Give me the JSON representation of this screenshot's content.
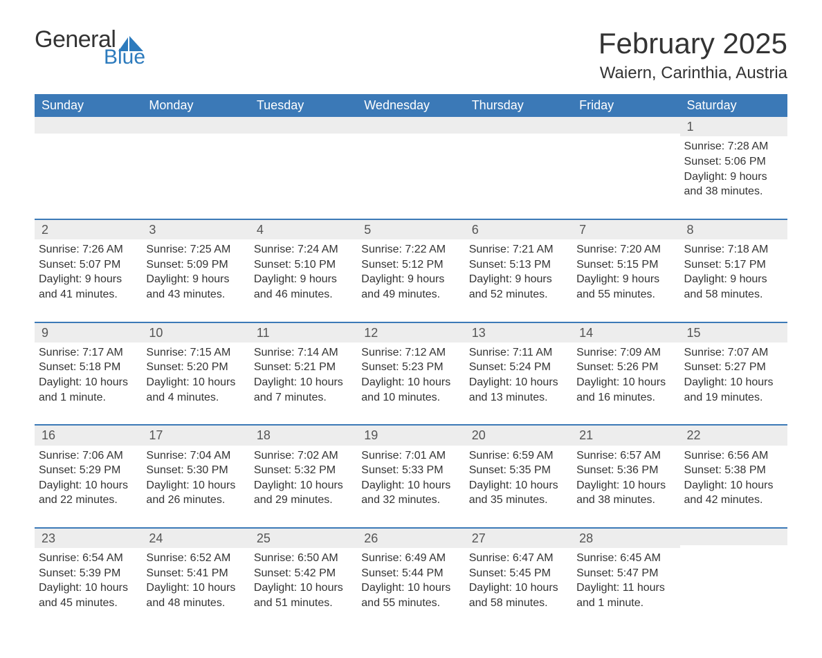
{
  "logo": {
    "general": "General",
    "blue": "Blue",
    "sail_color": "#2d7bbd"
  },
  "title": "February 2025",
  "location": "Waiern, Carinthia, Austria",
  "colors": {
    "header_bg": "#3b79b7",
    "header_text": "#ffffff",
    "daynum_bg": "#ededed",
    "border": "#3b79b7",
    "text": "#333333"
  },
  "dow": [
    "Sunday",
    "Monday",
    "Tuesday",
    "Wednesday",
    "Thursday",
    "Friday",
    "Saturday"
  ],
  "weeks": [
    [
      {},
      {},
      {},
      {},
      {},
      {},
      {
        "n": "1",
        "sunrise": "Sunrise: 7:28 AM",
        "sunset": "Sunset: 5:06 PM",
        "daylight": "Daylight: 9 hours and 38 minutes."
      }
    ],
    [
      {
        "n": "2",
        "sunrise": "Sunrise: 7:26 AM",
        "sunset": "Sunset: 5:07 PM",
        "daylight": "Daylight: 9 hours and 41 minutes."
      },
      {
        "n": "3",
        "sunrise": "Sunrise: 7:25 AM",
        "sunset": "Sunset: 5:09 PM",
        "daylight": "Daylight: 9 hours and 43 minutes."
      },
      {
        "n": "4",
        "sunrise": "Sunrise: 7:24 AM",
        "sunset": "Sunset: 5:10 PM",
        "daylight": "Daylight: 9 hours and 46 minutes."
      },
      {
        "n": "5",
        "sunrise": "Sunrise: 7:22 AM",
        "sunset": "Sunset: 5:12 PM",
        "daylight": "Daylight: 9 hours and 49 minutes."
      },
      {
        "n": "6",
        "sunrise": "Sunrise: 7:21 AM",
        "sunset": "Sunset: 5:13 PM",
        "daylight": "Daylight: 9 hours and 52 minutes."
      },
      {
        "n": "7",
        "sunrise": "Sunrise: 7:20 AM",
        "sunset": "Sunset: 5:15 PM",
        "daylight": "Daylight: 9 hours and 55 minutes."
      },
      {
        "n": "8",
        "sunrise": "Sunrise: 7:18 AM",
        "sunset": "Sunset: 5:17 PM",
        "daylight": "Daylight: 9 hours and 58 minutes."
      }
    ],
    [
      {
        "n": "9",
        "sunrise": "Sunrise: 7:17 AM",
        "sunset": "Sunset: 5:18 PM",
        "daylight": "Daylight: 10 hours and 1 minute."
      },
      {
        "n": "10",
        "sunrise": "Sunrise: 7:15 AM",
        "sunset": "Sunset: 5:20 PM",
        "daylight": "Daylight: 10 hours and 4 minutes."
      },
      {
        "n": "11",
        "sunrise": "Sunrise: 7:14 AM",
        "sunset": "Sunset: 5:21 PM",
        "daylight": "Daylight: 10 hours and 7 minutes."
      },
      {
        "n": "12",
        "sunrise": "Sunrise: 7:12 AM",
        "sunset": "Sunset: 5:23 PM",
        "daylight": "Daylight: 10 hours and 10 minutes."
      },
      {
        "n": "13",
        "sunrise": "Sunrise: 7:11 AM",
        "sunset": "Sunset: 5:24 PM",
        "daylight": "Daylight: 10 hours and 13 minutes."
      },
      {
        "n": "14",
        "sunrise": "Sunrise: 7:09 AM",
        "sunset": "Sunset: 5:26 PM",
        "daylight": "Daylight: 10 hours and 16 minutes."
      },
      {
        "n": "15",
        "sunrise": "Sunrise: 7:07 AM",
        "sunset": "Sunset: 5:27 PM",
        "daylight": "Daylight: 10 hours and 19 minutes."
      }
    ],
    [
      {
        "n": "16",
        "sunrise": "Sunrise: 7:06 AM",
        "sunset": "Sunset: 5:29 PM",
        "daylight": "Daylight: 10 hours and 22 minutes."
      },
      {
        "n": "17",
        "sunrise": "Sunrise: 7:04 AM",
        "sunset": "Sunset: 5:30 PM",
        "daylight": "Daylight: 10 hours and 26 minutes."
      },
      {
        "n": "18",
        "sunrise": "Sunrise: 7:02 AM",
        "sunset": "Sunset: 5:32 PM",
        "daylight": "Daylight: 10 hours and 29 minutes."
      },
      {
        "n": "19",
        "sunrise": "Sunrise: 7:01 AM",
        "sunset": "Sunset: 5:33 PM",
        "daylight": "Daylight: 10 hours and 32 minutes."
      },
      {
        "n": "20",
        "sunrise": "Sunrise: 6:59 AM",
        "sunset": "Sunset: 5:35 PM",
        "daylight": "Daylight: 10 hours and 35 minutes."
      },
      {
        "n": "21",
        "sunrise": "Sunrise: 6:57 AM",
        "sunset": "Sunset: 5:36 PM",
        "daylight": "Daylight: 10 hours and 38 minutes."
      },
      {
        "n": "22",
        "sunrise": "Sunrise: 6:56 AM",
        "sunset": "Sunset: 5:38 PM",
        "daylight": "Daylight: 10 hours and 42 minutes."
      }
    ],
    [
      {
        "n": "23",
        "sunrise": "Sunrise: 6:54 AM",
        "sunset": "Sunset: 5:39 PM",
        "daylight": "Daylight: 10 hours and 45 minutes."
      },
      {
        "n": "24",
        "sunrise": "Sunrise: 6:52 AM",
        "sunset": "Sunset: 5:41 PM",
        "daylight": "Daylight: 10 hours and 48 minutes."
      },
      {
        "n": "25",
        "sunrise": "Sunrise: 6:50 AM",
        "sunset": "Sunset: 5:42 PM",
        "daylight": "Daylight: 10 hours and 51 minutes."
      },
      {
        "n": "26",
        "sunrise": "Sunrise: 6:49 AM",
        "sunset": "Sunset: 5:44 PM",
        "daylight": "Daylight: 10 hours and 55 minutes."
      },
      {
        "n": "27",
        "sunrise": "Sunrise: 6:47 AM",
        "sunset": "Sunset: 5:45 PM",
        "daylight": "Daylight: 10 hours and 58 minutes."
      },
      {
        "n": "28",
        "sunrise": "Sunrise: 6:45 AM",
        "sunset": "Sunset: 5:47 PM",
        "daylight": "Daylight: 11 hours and 1 minute."
      },
      {}
    ]
  ]
}
